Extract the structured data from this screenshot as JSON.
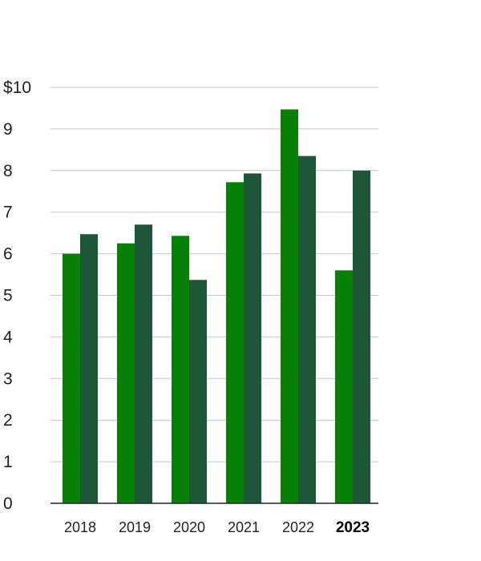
{
  "chart_data": {
    "type": "bar",
    "title": "",
    "xlabel": "",
    "ylabel": "",
    "ylim": [
      0,
      10
    ],
    "y_ticks": [
      "0",
      "1",
      "2",
      "3",
      "4",
      "5",
      "6",
      "7",
      "8",
      "9",
      "$10"
    ],
    "categories": [
      "2018",
      "2019",
      "2020",
      "2021",
      "2022",
      "2023"
    ],
    "highlighted_category": "2023",
    "grid": true,
    "legend": "none",
    "series": [
      {
        "values": [
          6.0,
          6.25,
          6.43,
          7.72,
          9.47,
          5.6
        ],
        "color": "#068105"
      },
      {
        "values": [
          6.47,
          6.7,
          5.37,
          7.93,
          8.35,
          8.0
        ],
        "color": "#1d5639"
      }
    ]
  }
}
